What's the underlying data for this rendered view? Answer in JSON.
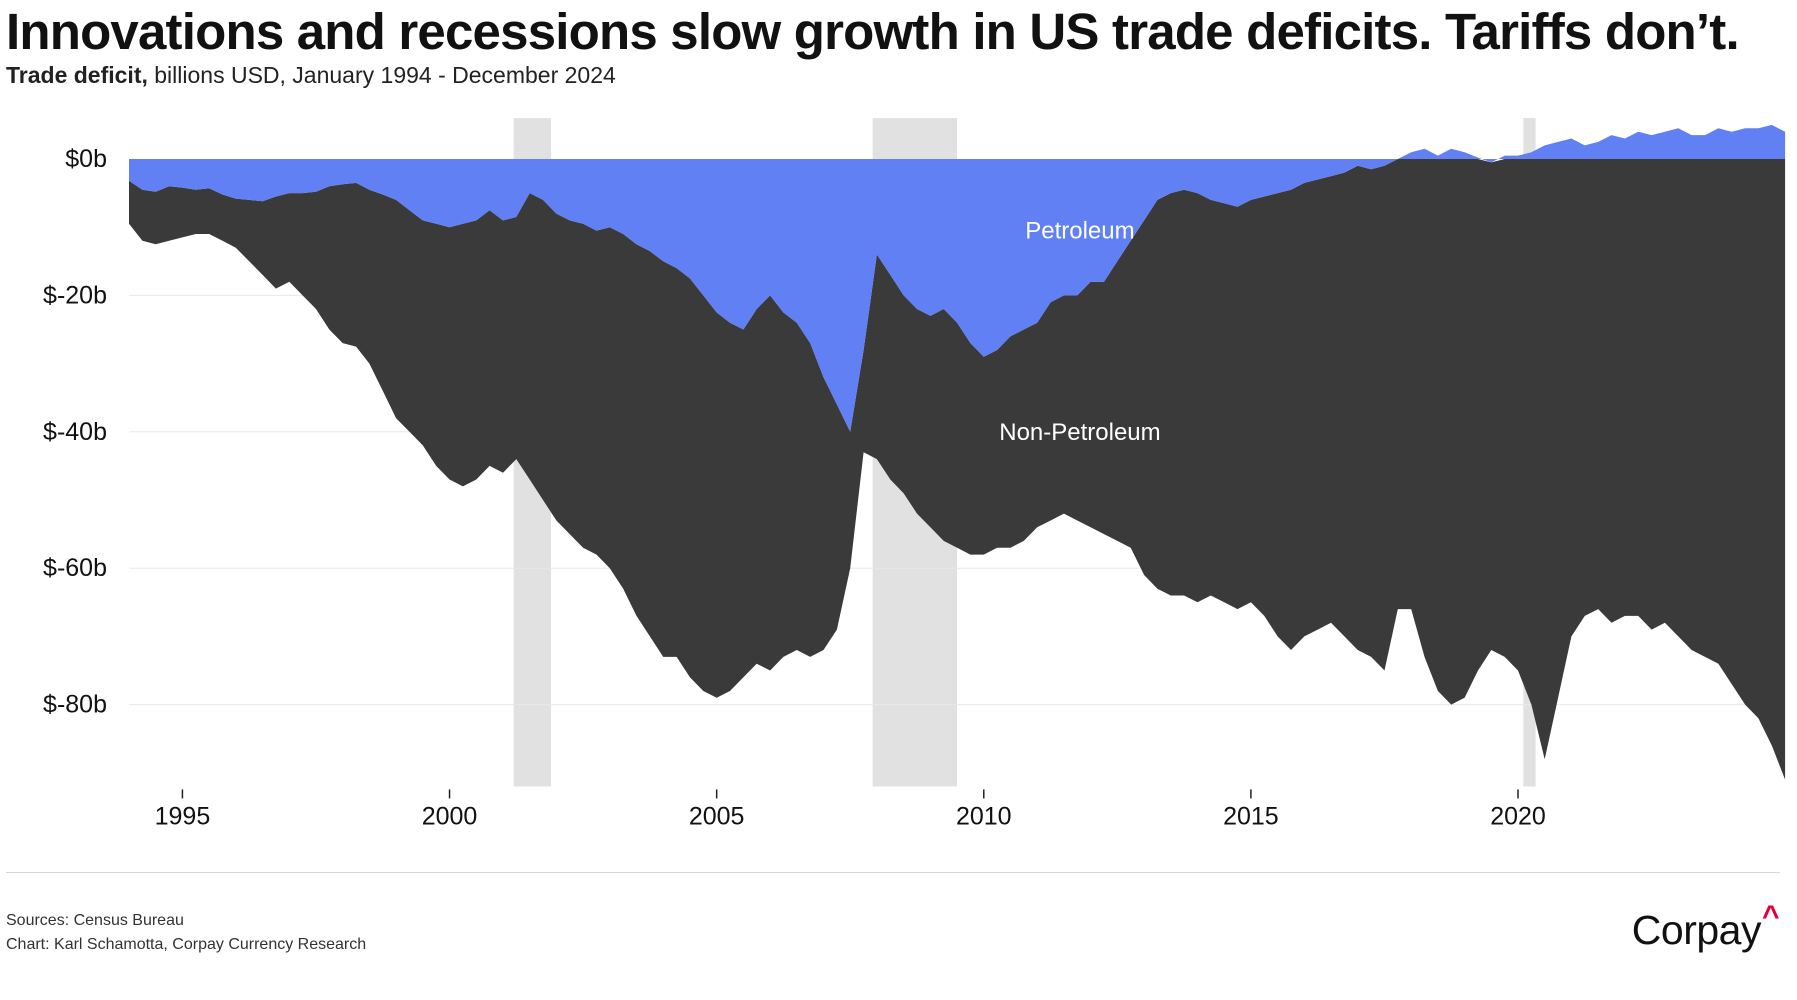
{
  "header": {
    "title": "Innovations and recessions slow growth in US trade deficits. Tariffs don’t.",
    "subtitle_bold": "Trade deficit,",
    "subtitle_rest": " billions USD, January 1994 - December 2024"
  },
  "footer": {
    "sources": "Sources: Census Bureau",
    "credit": "Chart: Karl Schamotta, Corpay Currency Research",
    "logo_text": "Corpay",
    "logo_mark": "^"
  },
  "colors": {
    "petroleum": "#6080f4",
    "non_petroleum": "#3a3a3a",
    "recession": "#e1e1e1",
    "grid": "#e8e8e8",
    "label_text": "#ffffff",
    "logo_accent": "#e4003b"
  },
  "chart_data": {
    "type": "area",
    "title": "Innovations and recessions slow growth in US trade deficits. Tariffs don’t.",
    "subtitle": "Trade deficit, billions USD, January 1994 - December 2024",
    "xlabel": "",
    "ylabel": "",
    "xlim": [
      1994.0,
      2024.96
    ],
    "ylim": [
      -92,
      6
    ],
    "y_ticks": [
      0,
      -20,
      -40,
      -60,
      -80
    ],
    "y_tick_labels": [
      "$0b",
      "$-20b",
      "$-40b",
      "$-60b",
      "$-80b"
    ],
    "x_ticks": [
      1995,
      2000,
      2005,
      2010,
      2015,
      2020
    ],
    "x_tick_labels": [
      "1995",
      "2000",
      "2005",
      "2010",
      "2015",
      "2020"
    ],
    "grid": true,
    "recessions": [
      [
        2001.2,
        2001.9
      ],
      [
        2007.92,
        2009.5
      ],
      [
        2020.1,
        2020.33
      ]
    ],
    "annotations": [
      {
        "text": "Petroleum",
        "x": 2011.8,
        "y": -10.5
      },
      {
        "text": "Non-Petroleum",
        "x": 2011.8,
        "y": -40
      }
    ],
    "series": [
      {
        "name": "Petroleum",
        "note": "Petroleum balance (boundary between blue and dark areas), sampled quarterly",
        "x_start": 1994.0,
        "x_step": 0.25,
        "values": [
          -3.2,
          -4.5,
          -4.8,
          -4.0,
          -4.2,
          -4.5,
          -4.3,
          -5.2,
          -5.8,
          -6.0,
          -6.2,
          -5.5,
          -5.0,
          -5.0,
          -4.8,
          -4.0,
          -3.7,
          -3.5,
          -4.5,
          -5.2,
          -6.0,
          -7.5,
          -9.0,
          -9.5,
          -10.0,
          -9.5,
          -9.0,
          -7.5,
          -9.0,
          -8.5,
          -5.0,
          -6.0,
          -8.0,
          -9.0,
          -9.5,
          -10.5,
          -10.0,
          -11.0,
          -12.5,
          -13.5,
          -15.0,
          -16.0,
          -17.5,
          -20.0,
          -22.5,
          -24.0,
          -25.0,
          -22.0,
          -20.0,
          -22.5,
          -24.0,
          -27.0,
          -32.0,
          -36.0,
          -40.0,
          -28.0,
          -14.0,
          -17.0,
          -20.0,
          -22.0,
          -23.0,
          -22.0,
          -24.0,
          -27.0,
          -29.0,
          -28.0,
          -26.0,
          -25.0,
          -24.0,
          -21.0,
          -20.0,
          -20.0,
          -18.0,
          -18.0,
          -15.0,
          -12.0,
          -9.0,
          -6.0,
          -5.0,
          -4.5,
          -5.0,
          -6.0,
          -6.5,
          -7.0,
          -6.0,
          -5.5,
          -5.0,
          -4.5,
          -3.5,
          -3.0,
          -2.5,
          -2.0,
          -1.0,
          -1.5,
          -1.0,
          0.0,
          1.0,
          1.5,
          0.5,
          1.5,
          1.0,
          0.2,
          -0.5,
          0.5,
          0.5,
          1.0,
          2.0,
          2.5,
          3.0,
          2.0,
          2.5,
          3.5,
          3.0,
          4.0,
          3.5,
          4.0,
          4.5,
          3.5,
          3.5,
          4.5,
          4.0,
          4.5,
          4.5,
          5.0,
          4.0
        ]
      },
      {
        "name": "Non-Petroleum",
        "note": "Total trade deficit (bottom of dark area), sampled quarterly",
        "x_start": 1994.0,
        "x_step": 0.25,
        "values": [
          -9.5,
          -12.0,
          -12.5,
          -12.0,
          -11.5,
          -11.0,
          -11.0,
          -12.0,
          -13.0,
          -15.0,
          -17.0,
          -19.0,
          -18.0,
          -20.0,
          -22.0,
          -25.0,
          -27.0,
          -27.5,
          -30.0,
          -34.0,
          -38.0,
          -40.0,
          -42.0,
          -45.0,
          -47.0,
          -48.0,
          -47.0,
          -45.0,
          -46.0,
          -44.0,
          -47.0,
          -50.0,
          -53.0,
          -55.0,
          -57.0,
          -58.0,
          -60.0,
          -63.0,
          -67.0,
          -70.0,
          -73.0,
          -73.0,
          -76.0,
          -78.0,
          -79.0,
          -78.0,
          -76.0,
          -74.0,
          -75.0,
          -73.0,
          -72.0,
          -73.0,
          -72.0,
          -69.0,
          -60.0,
          -43.0,
          -44.0,
          -47.0,
          -49.0,
          -52.0,
          -54.0,
          -56.0,
          -57.0,
          -58.0,
          -58.0,
          -57.0,
          -57.0,
          -56.0,
          -54.0,
          -53.0,
          -52.0,
          -53.0,
          -54.0,
          -55.0,
          -56.0,
          -57.0,
          -61.0,
          -63.0,
          -64.0,
          -64.0,
          -65.0,
          -64.0,
          -65.0,
          -66.0,
          -65.0,
          -67.0,
          -70.0,
          -72.0,
          -70.0,
          -69.0,
          -68.0,
          -70.0,
          -72.0,
          -73.0,
          -75.0,
          -66.0,
          -66.0,
          -73.0,
          -78.0,
          -80.0,
          -79.0,
          -75.0,
          -72.0,
          -73.0,
          -75.0,
          -80.0,
          -88.0,
          -79.0,
          -70.0,
          -67.0,
          -66.0,
          -68.0,
          -67.0,
          -67.0,
          -69.0,
          -68.0,
          -70.0,
          -72.0,
          -73.0,
          -74.0,
          -77.0,
          -80.0,
          -82.0,
          -86.0,
          -91.0
        ]
      }
    ]
  }
}
